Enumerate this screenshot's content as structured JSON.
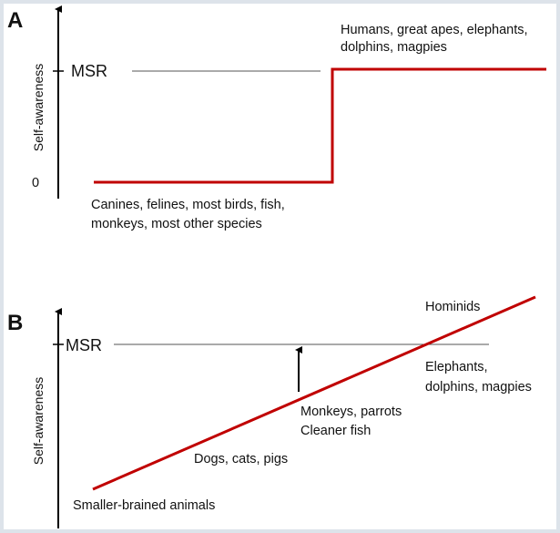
{
  "panel_a": {
    "letter": "A",
    "y_axis_label": "Self-awareness",
    "msr_label": "MSR",
    "zero_label": "0",
    "high_group_line1": "Humans, great apes, elephants,",
    "high_group_line2": "dolphins, magpies",
    "low_group_line1": "Canines, felines, most birds, fish,",
    "low_group_line2": "monkeys, most other species"
  },
  "panel_b": {
    "letter": "B",
    "y_axis_label": "Self-awareness",
    "msr_label": "MSR",
    "labels": {
      "hominids": "Hominids",
      "elephants_line1": "Elephants,",
      "elephants_line2": "dolphins, magpies",
      "monkeys_line1": "Monkeys, parrots",
      "monkeys_line2": "Cleaner fish",
      "dogs": "Dogs, cats, pigs",
      "smaller": "Smaller-brained animals"
    }
  },
  "colors": {
    "trend_line": "#c00000",
    "axis": "#000000",
    "msr_line": "#555555",
    "border": "#dde3ea"
  }
}
